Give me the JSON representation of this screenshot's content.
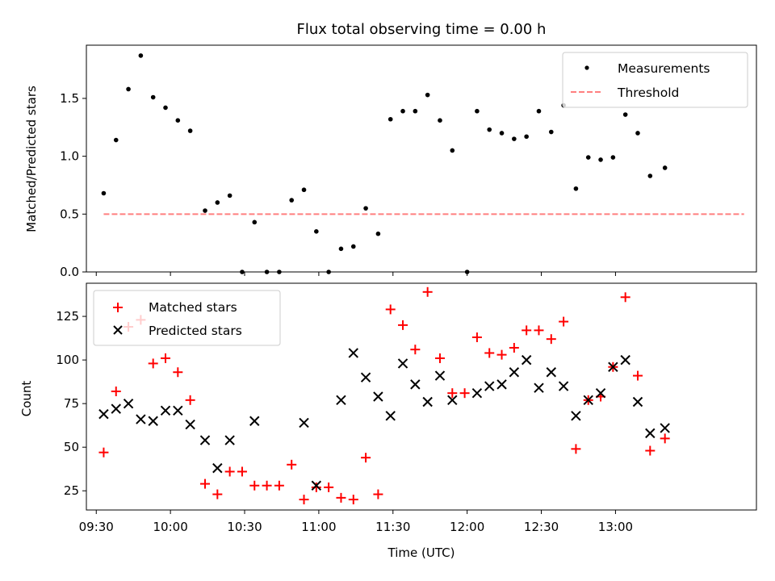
{
  "chart_data": [
    {
      "type": "scatter",
      "title": "Flux total observing time = 0.00 h",
      "xlabel": "",
      "ylabel": "Matched/Predicted stars",
      "xlim": [
        "09:26",
        "13:57"
      ],
      "ylim": [
        0,
        1.96
      ],
      "yticks": [
        0.0,
        0.5,
        1.0,
        1.5
      ],
      "yticklabels": [
        "0.0",
        "0.5",
        "1.0",
        "1.5"
      ],
      "legend": {
        "placement": "top-right",
        "entries": [
          "Measurements",
          "Threshold"
        ]
      },
      "threshold": {
        "name": "Threshold",
        "value": 0.5,
        "x_range": [
          "09:33",
          "13:52"
        ],
        "color": "#ff7f7f"
      },
      "series": [
        {
          "name": "Measurements",
          "color": "#000000",
          "marker": "dot",
          "x": [
            "09:33",
            "09:38",
            "09:43",
            "09:48",
            "09:53",
            "09:58",
            "10:03",
            "10:08",
            "10:14",
            "10:19",
            "10:24",
            "10:29",
            "10:34",
            "10:39",
            "10:44",
            "10:49",
            "10:54",
            "10:59",
            "11:04",
            "11:09",
            "11:14",
            "11:19",
            "11:24",
            "11:29",
            "11:34",
            "11:39",
            "11:44",
            "11:49",
            "11:54",
            "12:00",
            "12:04",
            "12:09",
            "12:14",
            "12:19",
            "12:24",
            "12:29",
            "12:34",
            "12:39",
            "12:44",
            "12:49",
            "12:54",
            "12:59",
            "13:04",
            "13:09",
            "13:14",
            "13:20"
          ],
          "y": [
            0.68,
            1.14,
            1.58,
            1.87,
            1.51,
            1.42,
            1.31,
            1.22,
            0.53,
            0.6,
            0.66,
            0.0,
            0.43,
            0.0,
            0.0,
            0.62,
            0.71,
            0.35,
            0.0,
            0.2,
            0.22,
            0.55,
            0.33,
            1.32,
            1.39,
            1.39,
            1.53,
            1.31,
            1.05,
            0.0,
            1.39,
            1.23,
            1.2,
            1.15,
            1.17,
            1.39,
            1.21,
            1.44,
            0.72,
            0.99,
            0.97,
            0.99,
            1.36,
            1.2,
            0.83,
            0.9
          ]
        }
      ]
    },
    {
      "type": "scatter",
      "title": "",
      "xlabel": "Time (UTC)",
      "ylabel": "Count",
      "xlim": [
        "09:26",
        "13:57"
      ],
      "ylim": [
        14,
        144
      ],
      "xticks": [
        "09:30",
        "10:00",
        "10:30",
        "11:00",
        "11:30",
        "12:00",
        "12:30",
        "13:00"
      ],
      "xticklabels": [
        "09:30",
        "10:00",
        "10:30",
        "11:00",
        "11:30",
        "12:00",
        "12:30",
        "13:00"
      ],
      "yticks": [
        25,
        50,
        75,
        100,
        125
      ],
      "yticklabels": [
        "25",
        "50",
        "75",
        "100",
        "125"
      ],
      "legend": {
        "placement": "top-left",
        "entries": [
          "Matched stars",
          "Predicted stars"
        ]
      },
      "series": [
        {
          "name": "Matched stars",
          "color": "#ff0000",
          "marker": "plus",
          "x": [
            "09:33",
            "09:38",
            "09:43",
            "09:48",
            "09:53",
            "09:58",
            "10:03",
            "10:08",
            "10:14",
            "10:19",
            "10:24",
            "10:29",
            "10:34",
            "10:39",
            "10:44",
            "10:49",
            "10:54",
            "10:59",
            "11:04",
            "11:09",
            "11:14",
            "11:19",
            "11:24",
            "11:29",
            "11:34",
            "11:39",
            "11:44",
            "11:49",
            "11:54",
            "11:59",
            "12:04",
            "12:09",
            "12:14",
            "12:19",
            "12:24",
            "12:29",
            "12:34",
            "12:39",
            "12:44",
            "12:49",
            "12:54",
            "12:59",
            "13:04",
            "13:09",
            "13:14",
            "13:20"
          ],
          "y": [
            47,
            82,
            119,
            123,
            98,
            101,
            93,
            77,
            29,
            23,
            36,
            36,
            28,
            28,
            28,
            40,
            20,
            27,
            27,
            21,
            20,
            44,
            23,
            129,
            120,
            106,
            139,
            101,
            81,
            81,
            113,
            104,
            103,
            107,
            117,
            117,
            112,
            122,
            49,
            77,
            79,
            96,
            136,
            91,
            48,
            55
          ]
        },
        {
          "name": "Predicted stars",
          "color": "#000000",
          "marker": "x",
          "x": [
            "09:33",
            "09:38",
            "09:43",
            "09:48",
            "09:53",
            "09:58",
            "10:03",
            "10:08",
            "10:14",
            "10:19",
            "10:24",
            "10:34",
            "10:54",
            "10:59",
            "11:09",
            "11:14",
            "11:19",
            "11:24",
            "11:29",
            "11:34",
            "11:39",
            "11:44",
            "11:49",
            "11:54",
            "12:04",
            "12:09",
            "12:14",
            "12:19",
            "12:24",
            "12:29",
            "12:34",
            "12:39",
            "12:44",
            "12:49",
            "12:54",
            "12:59",
            "13:04",
            "13:09",
            "13:14",
            "13:20"
          ],
          "y": [
            69,
            72,
            75,
            66,
            65,
            71,
            71,
            63,
            54,
            38,
            54,
            65,
            64,
            28,
            77,
            104,
            90,
            79,
            68,
            98,
            86,
            76,
            91,
            77,
            81,
            85,
            86,
            93,
            100,
            84,
            93,
            85,
            68,
            77,
            81,
            96,
            100,
            76,
            58,
            61
          ]
        }
      ]
    }
  ]
}
